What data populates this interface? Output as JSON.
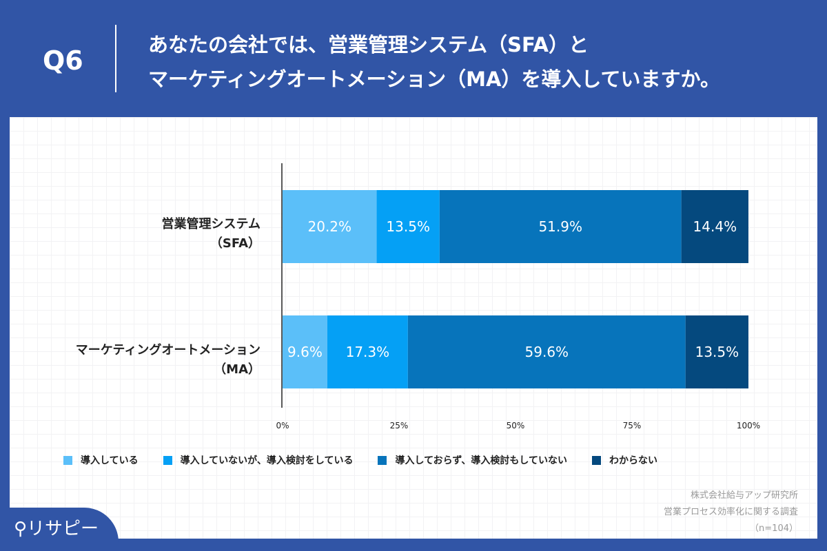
{
  "header": {
    "q": "Q6",
    "title_line1": "あなたの会社では、営業管理システム（SFA）と",
    "title_line2": "マーケティングオートメーション（MA）を導入していますか。"
  },
  "chart_data": {
    "type": "bar",
    "orientation": "horizontal",
    "stacked": true,
    "categories": [
      [
        "営業管理システム",
        "（SFA）"
      ],
      [
        "マーケティングオートメーション",
        "（MA）"
      ]
    ],
    "series": [
      {
        "name": "導入している",
        "color": "#5bbff9",
        "values": [
          20.2,
          9.6
        ],
        "labels": [
          "20.2%",
          "9.6%"
        ]
      },
      {
        "name": "導入していないが、導入検討をしている",
        "color": "#05a0f5",
        "values": [
          13.5,
          17.3
        ],
        "labels": [
          "13.5%",
          "17.3%"
        ]
      },
      {
        "name": "導入しておらず、導入検討もしていない",
        "color": "#0774bb",
        "values": [
          51.9,
          59.6
        ],
        "labels": [
          "51.9%",
          "59.6%"
        ]
      },
      {
        "name": "わからない",
        "color": "#05497e",
        "values": [
          14.4,
          13.5
        ],
        "labels": [
          "14.4%",
          "13.5%"
        ]
      }
    ],
    "xlim": [
      0,
      100
    ],
    "xticks": [
      "0%",
      "25%",
      "50%",
      "75%",
      "100%"
    ],
    "legend": "bottom"
  },
  "source": {
    "line1": "株式会社給与アップ研究所",
    "line2": "営業プロセス効率化に関する調査",
    "line3": "（n=104）"
  },
  "logo": {
    "text": "リサピー"
  }
}
